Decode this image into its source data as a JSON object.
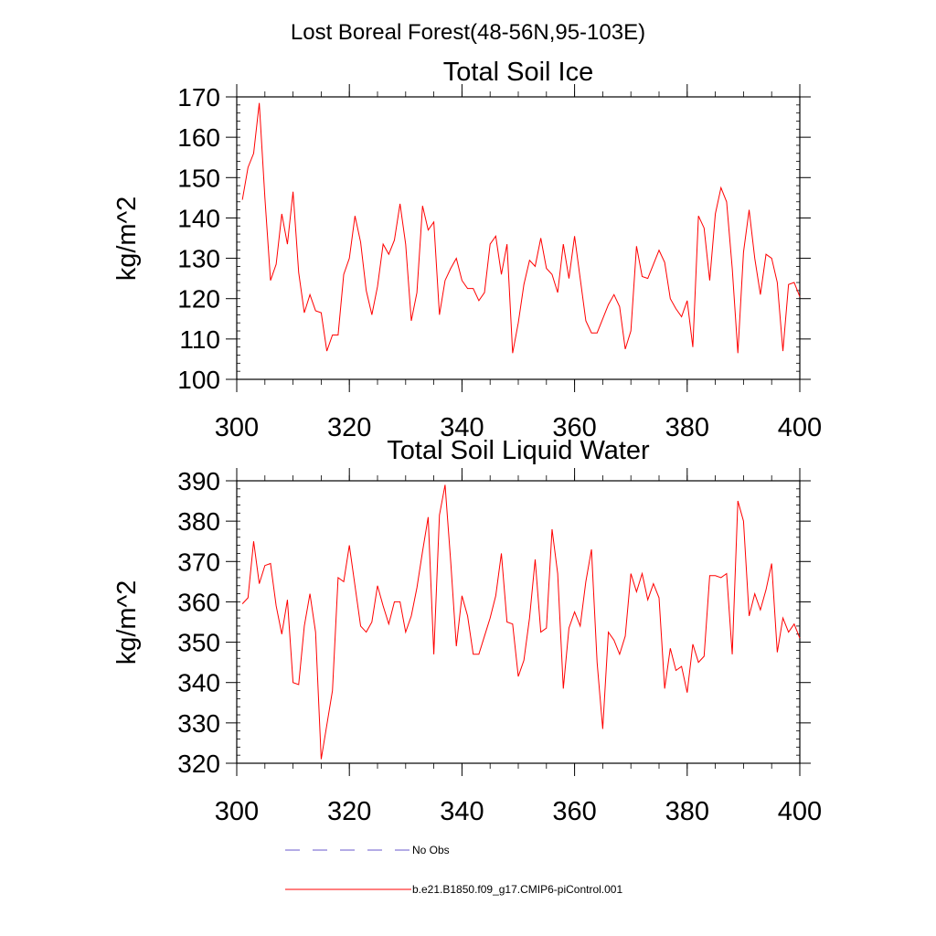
{
  "figure_title": "Lost Boreal Forest(48-56N,95-103E)",
  "colors": {
    "model": "#ff0000",
    "obs": "#6a5acd",
    "axis": "#000000"
  },
  "legend": {
    "obs_label": "No Obs",
    "model_label": "b.e21.B1850.f09_g17.CMIP6-piControl.001"
  },
  "chart_data": [
    {
      "type": "line",
      "title": "Total Soil Ice",
      "xlabel": "",
      "ylabel": "kg/m^2",
      "xlim": [
        300,
        400
      ],
      "ylim": [
        100,
        170
      ],
      "xticks": [
        300,
        320,
        340,
        360,
        380,
        400
      ],
      "yticks": [
        100,
        110,
        120,
        130,
        140,
        150,
        160,
        170
      ],
      "x_start": 301,
      "series": [
        {
          "name": "b.e21.B1850.f09_g17.CMIP6-piControl.001",
          "values": [
            144.5,
            152.5,
            156,
            168.5,
            145,
            124.5,
            128.5,
            141,
            133.5,
            146.5,
            126.5,
            116.5,
            121,
            117,
            116.5,
            107,
            111,
            111,
            126,
            130,
            140.5,
            134,
            122,
            116,
            123,
            133.5,
            131,
            134.5,
            143.5,
            133.5,
            114.5,
            121.5,
            143,
            137,
            139,
            116,
            124.5,
            127.5,
            130,
            124.5,
            122.5,
            122.5,
            119.5,
            121.5,
            133.5,
            135.5,
            126,
            133.5,
            106.5,
            114,
            123.5,
            129.5,
            128,
            135,
            127.5,
            126,
            121.5,
            133.5,
            125,
            135.5,
            125,
            114.5,
            111.5,
            111.5,
            115,
            118.5,
            121,
            118,
            107.5,
            112,
            133,
            125.5,
            125,
            128.5,
            132,
            129,
            120,
            117.5,
            115.5,
            119.5,
            108,
            140.5,
            137.5,
            124.5,
            141,
            147.5,
            144,
            127.5,
            106.5,
            131.5,
            142,
            130,
            121,
            131,
            130,
            124,
            107,
            123.5,
            124,
            120.5
          ]
        }
      ]
    },
    {
      "type": "line",
      "title": "Total Soil Liquid Water",
      "xlabel": "",
      "ylabel": "kg/m^2",
      "xlim": [
        300,
        400
      ],
      "ylim": [
        320,
        390
      ],
      "xticks": [
        300,
        320,
        340,
        360,
        380,
        400
      ],
      "yticks": [
        320,
        330,
        340,
        350,
        360,
        370,
        380,
        390
      ],
      "x_start": 301,
      "series": [
        {
          "name": "b.e21.B1850.f09_g17.CMIP6-piControl.001",
          "values": [
            359.5,
            361,
            375,
            364.5,
            369,
            369.5,
            359,
            352,
            360.5,
            340,
            339.5,
            354,
            362,
            352.5,
            321,
            329.5,
            338,
            366,
            365,
            374,
            364,
            354,
            352.5,
            355,
            364,
            359,
            354.5,
            360,
            360,
            352.5,
            356.5,
            363.5,
            372.5,
            381,
            347,
            381.5,
            389,
            370,
            349,
            361.5,
            356.5,
            347,
            347,
            351.5,
            356,
            361.5,
            372,
            355,
            354.5,
            341.5,
            345.5,
            356,
            370.5,
            352.5,
            353.5,
            378,
            367,
            338.5,
            353.5,
            357.5,
            354,
            365,
            373,
            345,
            328.5,
            352.5,
            350.5,
            347,
            351.5,
            367,
            362.5,
            367,
            360.5,
            364.5,
            361,
            338.5,
            348.5,
            343,
            344,
            337.5,
            349.5,
            345,
            346.5,
            366.5,
            366.5,
            366,
            367,
            347,
            385,
            380,
            356.5,
            362,
            358,
            363,
            369.5,
            347.5,
            356,
            352.5,
            354.5,
            351
          ]
        }
      ]
    }
  ]
}
